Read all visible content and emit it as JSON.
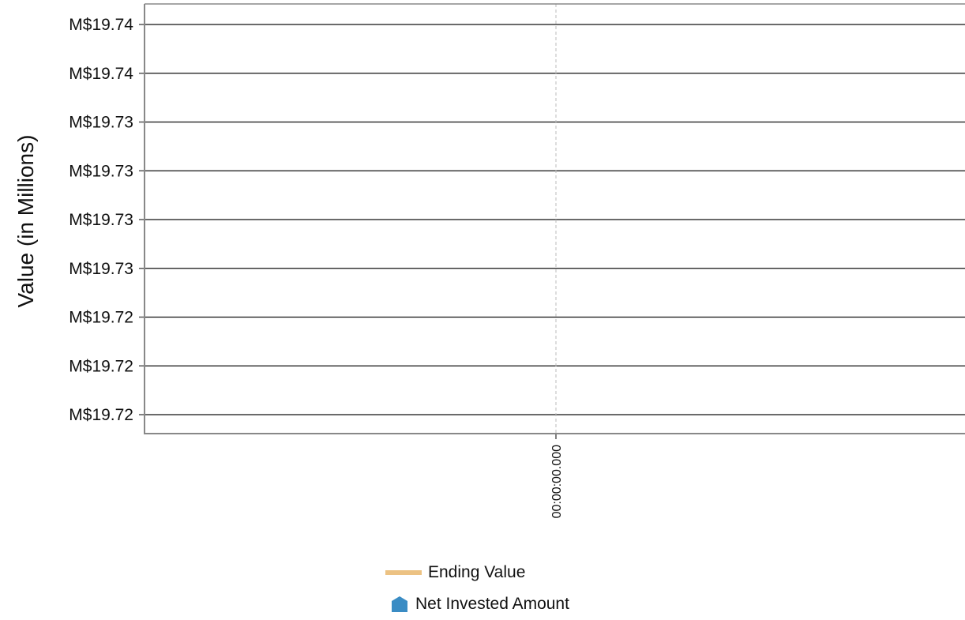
{
  "chart_data": {
    "type": "line",
    "title": "",
    "xlabel": "",
    "ylabel": "Value (in Millions)",
    "y_tick_labels": [
      "M$19.74",
      "M$19.74",
      "M$19.73",
      "M$19.73",
      "M$19.73",
      "M$19.73",
      "M$19.72",
      "M$19.72",
      "M$19.72"
    ],
    "x_tick_labels": [
      "00:00:00.000"
    ],
    "ylim": [
      19.7195,
      19.741
    ],
    "y_ticks": [
      19.74,
      19.7375,
      19.735,
      19.7325,
      19.73,
      19.7275,
      19.725,
      19.7225,
      19.72
    ],
    "series": [
      {
        "name": "Ending Value",
        "color": "#ecc283",
        "style": "line",
        "values": []
      },
      {
        "name": "Net Invested Amount",
        "color": "#3a8cc4",
        "style": "marker",
        "values": []
      }
    ],
    "grid": true,
    "legend_position": "bottom"
  }
}
